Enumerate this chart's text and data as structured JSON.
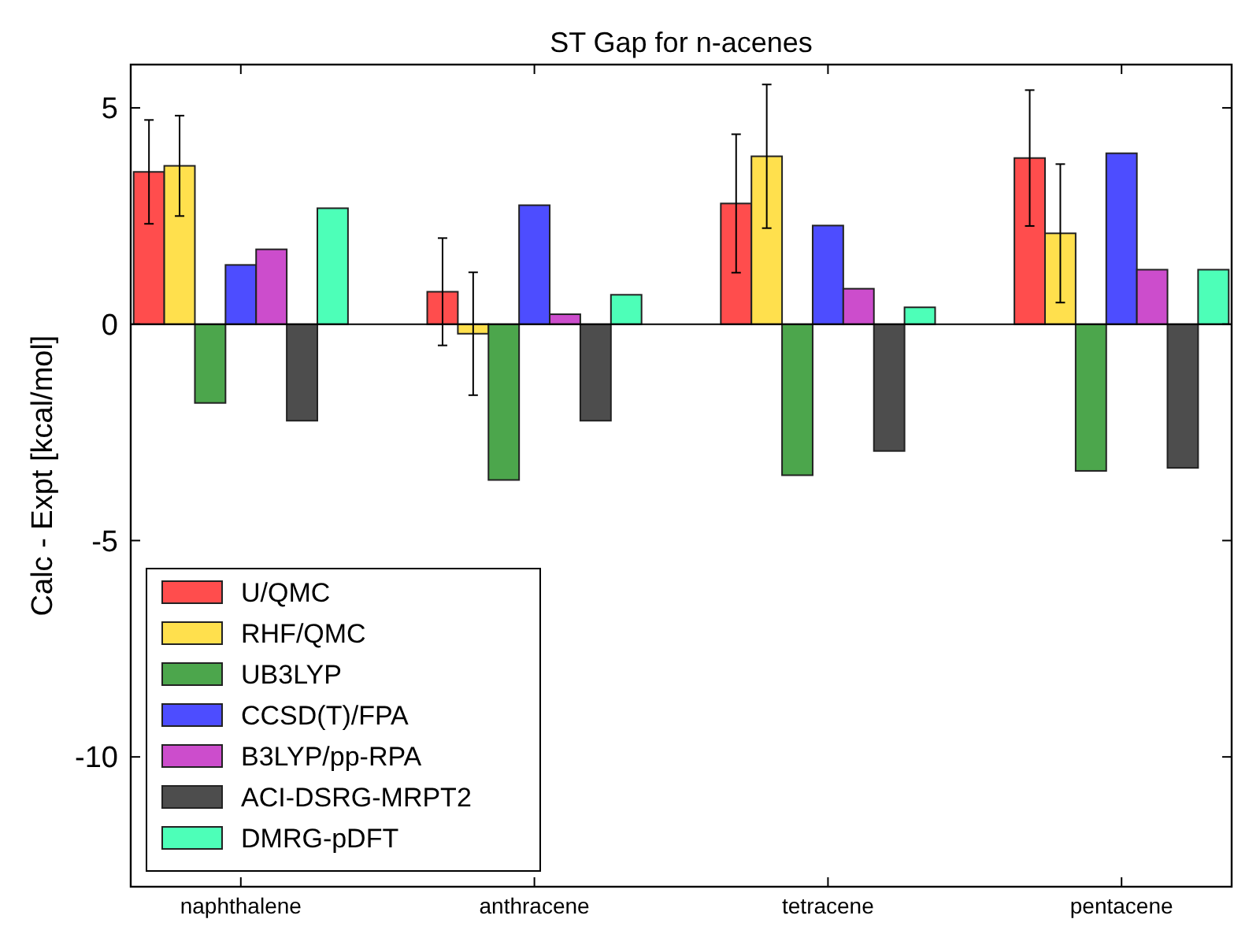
{
  "chart_data": {
    "type": "bar",
    "title": "ST Gap for n-acenes",
    "ylabel": "Calc - Expt [kcal/mol]",
    "categories": [
      "naphthalene",
      "anthracene",
      "tetracene",
      "pentacene"
    ],
    "series": [
      {
        "name": "U/QMC",
        "color": "#ff4d4d",
        "values": [
          3.52,
          0.75,
          2.79,
          3.84
        ],
        "errors": [
          1.2,
          1.24,
          1.6,
          1.57
        ]
      },
      {
        "name": "RHF/QMC",
        "color": "#ffe04d",
        "values": [
          3.66,
          -0.22,
          3.88,
          2.1
        ],
        "errors": [
          1.16,
          1.42,
          1.66,
          1.6
        ]
      },
      {
        "name": "UB3LYP",
        "color": "#4ca64c",
        "values": [
          -1.82,
          -3.6,
          -3.49,
          -3.39
        ]
      },
      {
        "name": "CCSD(T)/FPA",
        "color": "#4d4dff",
        "values": [
          1.37,
          2.75,
          2.28,
          3.95
        ]
      },
      {
        "name": "B3LYP/pp-RPA",
        "color": "#cc4dcc",
        "values": [
          1.73,
          0.23,
          0.82,
          1.26
        ]
      },
      {
        "name": "ACI-DSRG-MRPT2",
        "color": "#4d4d4d",
        "values": [
          -2.23,
          -2.23,
          -2.93,
          -3.32
        ]
      },
      {
        "name": "DMRG-pDFT",
        "color": "#4dffb8",
        "values": [
          2.68,
          0.68,
          0.39,
          1.26
        ]
      }
    ],
    "ylim": [
      -13,
      6
    ],
    "yticks": [
      -10,
      -5,
      0,
      5
    ],
    "legend": "bottom left",
    "ref_lines": [
      {
        "axis": "y",
        "value": 0,
        "color": "#000000"
      }
    ]
  }
}
